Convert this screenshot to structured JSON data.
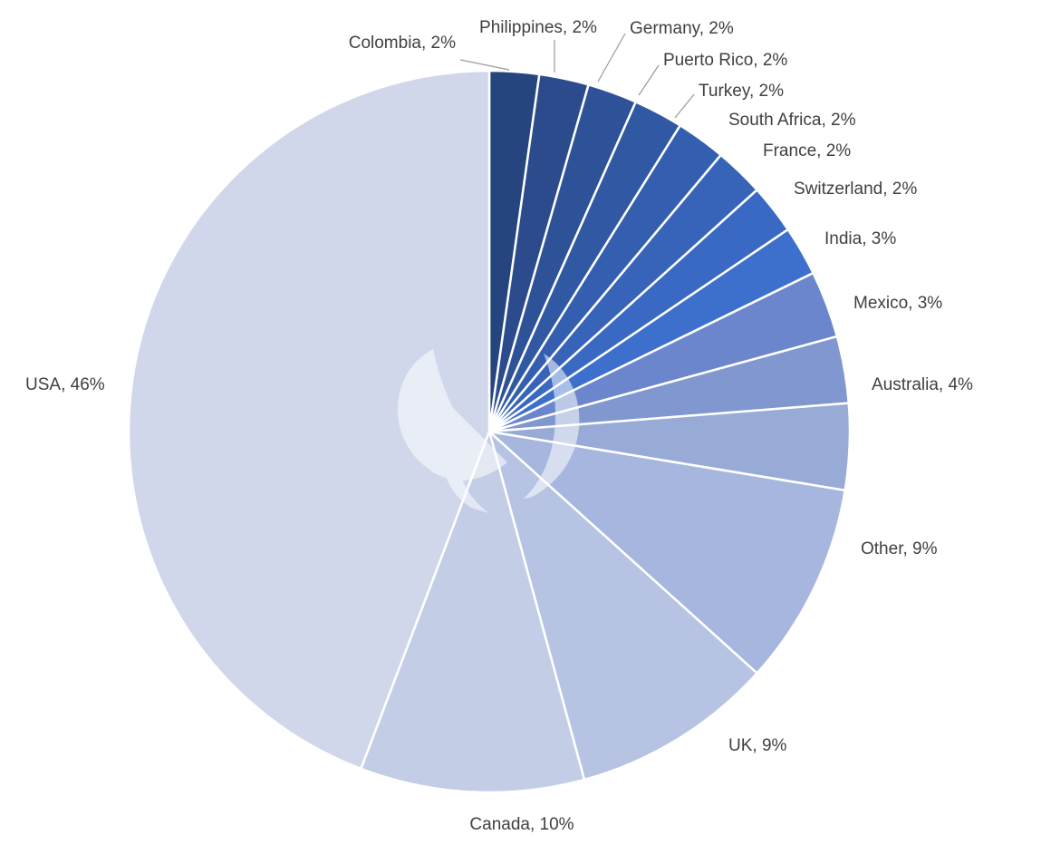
{
  "chart_data": {
    "type": "pie",
    "title": "",
    "legend": "none",
    "start_angle_deg": 0,
    "direction": "clockwise",
    "slices": [
      {
        "label": "Colombia, 2%",
        "name": "Colombia",
        "value": 2.3,
        "color": "#26457e"
      },
      {
        "label": "Philippines, 2%",
        "name": "Philippines",
        "value": 2.3,
        "color": "#2b4b8c"
      },
      {
        "label": "Germany, 2%",
        "name": "Germany",
        "value": 2.3,
        "color": "#2e5298"
      },
      {
        "label": "Puerto Rico, 2%",
        "name": "Puerto Rico",
        "value": 2.3,
        "color": "#3158a2"
      },
      {
        "label": "Turkey, 2%",
        "name": "Turkey",
        "value": 2.3,
        "color": "#345eaf"
      },
      {
        "label": "South Africa, 2%",
        "name": "South Africa",
        "value": 2.3,
        "color": "#3764b9"
      },
      {
        "label": "France, 2%",
        "name": "France",
        "value": 2.3,
        "color": "#3a69c3"
      },
      {
        "label": "Switzerland, 2%",
        "name": "Switzerland",
        "value": 2.3,
        "color": "#3d6fcc"
      },
      {
        "label": "India, 3%",
        "name": "India",
        "value": 3.1,
        "color": "#6b86cc"
      },
      {
        "label": "Mexico, 3%",
        "name": "Mexico",
        "value": 3.1,
        "color": "#8097cf"
      },
      {
        "label": "Australia, 4%",
        "name": "Australia",
        "value": 4.0,
        "color": "#98aad6"
      },
      {
        "label": "Other, 9%",
        "name": "Other",
        "value": 9.4,
        "color": "#a7b6df"
      },
      {
        "label": "UK, 9%",
        "name": "UK",
        "value": 9.4,
        "color": "#b6c3e3"
      },
      {
        "label": "Canada, 10%",
        "name": "Canada",
        "value": 10.4,
        "color": "#c3cde6"
      },
      {
        "label": "USA, 46%",
        "name": "USA",
        "value": 45.8,
        "color": "#d0d7ea"
      }
    ]
  }
}
